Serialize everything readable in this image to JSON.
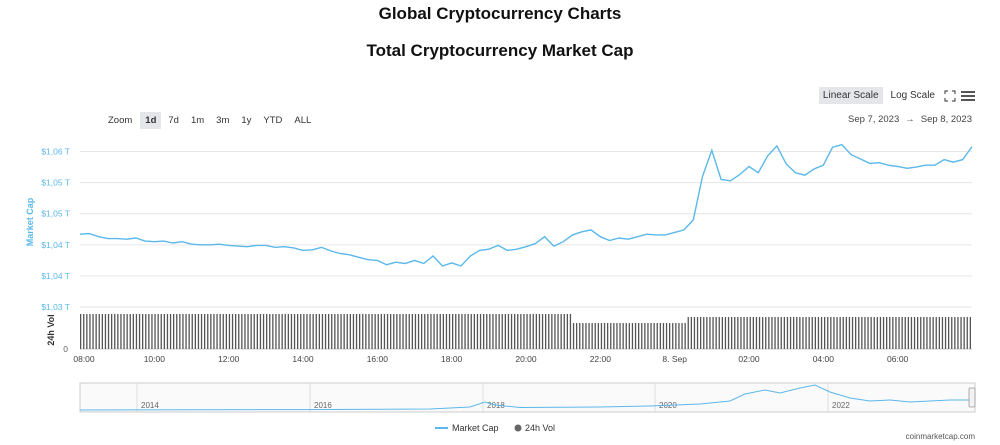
{
  "header": {
    "page_title": "Global Cryptocurrency Charts",
    "chart_title": "Total Cryptocurrency Market Cap"
  },
  "scale": {
    "linear": "Linear Scale",
    "log": "Log Scale"
  },
  "zoom": {
    "label": "Zoom",
    "buttons": [
      "1d",
      "7d",
      "1m",
      "3m",
      "1y",
      "YTD",
      "ALL"
    ],
    "active": "1d"
  },
  "date_range": {
    "from": "Sep 7, 2023",
    "sep": "→",
    "to": "Sep 8, 2023"
  },
  "credit": "coinmarketcap.com",
  "icons": {
    "fullscreen": "expand-icon",
    "menu": "hamburger-menu-icon"
  },
  "colors": {
    "market_cap": "#5bb8ea",
    "volume": "#666666",
    "grid": "#e6e6e6"
  },
  "chart_data": {
    "type": "line",
    "ylabel": "Market Cap",
    "y_ticks": [
      "$1,06 T",
      "$1,05 T",
      "$1,05 T",
      "$1,04 T",
      "$1,04 T",
      "$1,03 T"
    ],
    "y_tick_values": [
      1.06,
      1.055,
      1.05,
      1.045,
      1.04,
      1.035
    ],
    "ylim": [
      1.035,
      1.0625
    ],
    "x_ticks": [
      "08:00",
      "10:00",
      "12:00",
      "14:00",
      "16:00",
      "18:00",
      "20:00",
      "22:00",
      "8. Sep",
      "02:00",
      "04:00",
      "06:00"
    ],
    "x_tick_hours": [
      0,
      2,
      4,
      6,
      8,
      10,
      12,
      14,
      16,
      18,
      20,
      22
    ],
    "xlim_hours": [
      0,
      24
    ],
    "market_cap_series": {
      "name": "Market Cap",
      "points": [
        [
          0,
          1.0467
        ],
        [
          0.25,
          1.0468
        ],
        [
          0.5,
          1.0463
        ],
        [
          0.75,
          1.046
        ],
        [
          1,
          1.046
        ],
        [
          1.25,
          1.0459
        ],
        [
          1.5,
          1.0461
        ],
        [
          1.75,
          1.0456
        ],
        [
          2,
          1.0455
        ],
        [
          2.25,
          1.0456
        ],
        [
          2.5,
          1.0453
        ],
        [
          2.75,
          1.0455
        ],
        [
          3,
          1.0451
        ],
        [
          3.25,
          1.045
        ],
        [
          3.5,
          1.045
        ],
        [
          3.75,
          1.0451
        ],
        [
          4,
          1.0449
        ],
        [
          4.25,
          1.0448
        ],
        [
          4.5,
          1.0447
        ],
        [
          4.75,
          1.0449
        ],
        [
          5,
          1.0449
        ],
        [
          5.25,
          1.0446
        ],
        [
          5.5,
          1.0447
        ],
        [
          5.75,
          1.0445
        ],
        [
          6,
          1.0441
        ],
        [
          6.25,
          1.0442
        ],
        [
          6.5,
          1.0446
        ],
        [
          6.75,
          1.044
        ],
        [
          7,
          1.0436
        ],
        [
          7.25,
          1.0434
        ],
        [
          7.5,
          1.043
        ],
        [
          7.75,
          1.0426
        ],
        [
          8,
          1.0425
        ],
        [
          8.25,
          1.0418
        ],
        [
          8.5,
          1.0422
        ],
        [
          8.75,
          1.042
        ],
        [
          9,
          1.0425
        ],
        [
          9.25,
          1.042
        ],
        [
          9.5,
          1.0432
        ],
        [
          9.75,
          1.0416
        ],
        [
          10,
          1.0421
        ],
        [
          10.25,
          1.0416
        ],
        [
          10.5,
          1.0432
        ],
        [
          10.75,
          1.0441
        ],
        [
          11,
          1.0443
        ],
        [
          11.25,
          1.0449
        ],
        [
          11.5,
          1.0441
        ],
        [
          11.75,
          1.0443
        ],
        [
          12,
          1.0447
        ],
        [
          12.25,
          1.0452
        ],
        [
          12.5,
          1.0463
        ],
        [
          12.75,
          1.0448
        ],
        [
          13,
          1.0455
        ],
        [
          13.25,
          1.0466
        ],
        [
          13.5,
          1.0471
        ],
        [
          13.75,
          1.0474
        ],
        [
          14,
          1.0463
        ],
        [
          14.25,
          1.0457
        ],
        [
          14.5,
          1.0461
        ],
        [
          14.75,
          1.0459
        ],
        [
          15,
          1.0463
        ],
        [
          15.25,
          1.0467
        ],
        [
          15.5,
          1.0466
        ],
        [
          15.75,
          1.0466
        ],
        [
          16,
          1.047
        ],
        [
          16.25,
          1.0474
        ],
        [
          16.5,
          1.049
        ],
        [
          16.75,
          1.056
        ],
        [
          17,
          1.0602
        ],
        [
          17.25,
          1.0555
        ],
        [
          17.5,
          1.0553
        ],
        [
          17.75,
          1.0563
        ],
        [
          18,
          1.0576
        ],
        [
          18.25,
          1.0566
        ],
        [
          18.5,
          1.0593
        ],
        [
          18.75,
          1.0609
        ],
        [
          19,
          1.058
        ],
        [
          19.25,
          1.0566
        ],
        [
          19.5,
          1.0562
        ],
        [
          19.75,
          1.0572
        ],
        [
          20,
          1.0578
        ],
        [
          20.25,
          1.0607
        ],
        [
          20.5,
          1.0611
        ],
        [
          20.75,
          1.0595
        ],
        [
          21,
          1.0588
        ],
        [
          21.25,
          1.0581
        ],
        [
          21.5,
          1.0582
        ],
        [
          21.75,
          1.0578
        ],
        [
          22,
          1.0576
        ],
        [
          22.25,
          1.0573
        ],
        [
          22.5,
          1.0575
        ],
        [
          22.75,
          1.0578
        ],
        [
          23,
          1.0578
        ],
        [
          23.25,
          1.0587
        ],
        [
          23.5,
          1.0583
        ],
        [
          23.75,
          1.0587
        ],
        [
          24,
          1.0608
        ]
      ]
    },
    "volume_series": {
      "name": "24h Vol",
      "ylabel": "24h Vol",
      "y_tick": "0"
    },
    "navigator": {
      "x_ticks": [
        "2014",
        "2016",
        "2018",
        "2020",
        "2022"
      ]
    },
    "legend": [
      "Market Cap",
      "24h Vol"
    ],
    "legend_placement": "bottom-center",
    "grid": true
  }
}
